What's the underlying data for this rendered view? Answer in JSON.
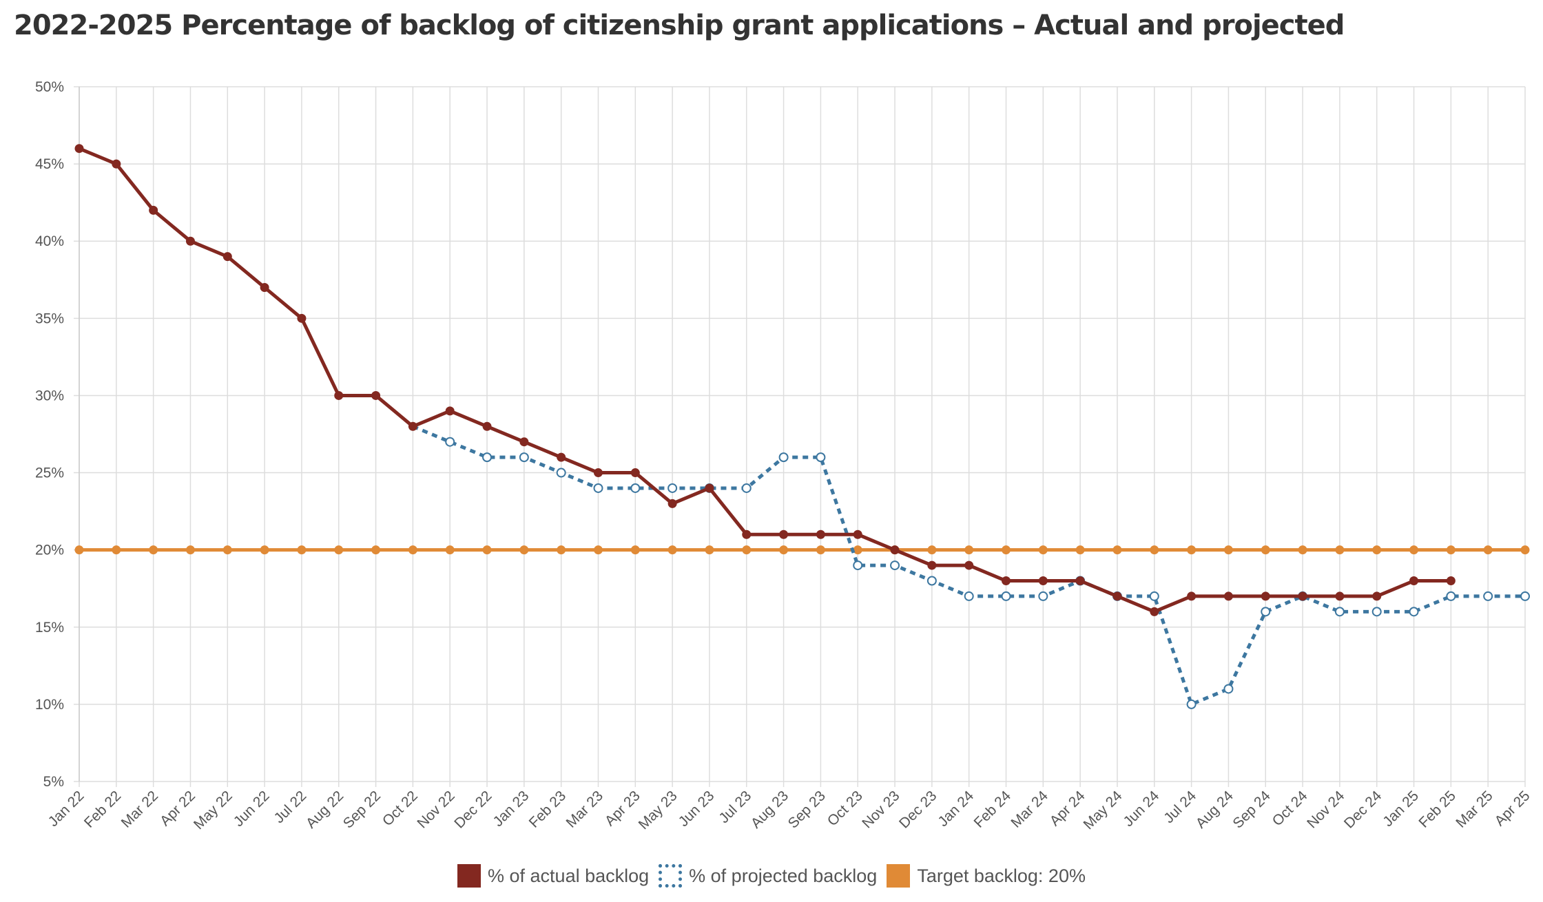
{
  "chart_data": {
    "type": "line",
    "title": "2022-2025 Percentage of backlog of citizenship grant applications – Actual and projected",
    "categories": [
      "Jan 22",
      "Feb 22",
      "Mar 22",
      "Apr 22",
      "May 22",
      "Jun 22",
      "Jul 22",
      "Aug 22",
      "Sep 22",
      "Oct 22",
      "Nov 22",
      "Dec 22",
      "Jan 23",
      "Feb 23",
      "Mar 23",
      "Apr 23",
      "May 23",
      "Jun 23",
      "Jul 23",
      "Aug 23",
      "Sep 23",
      "Oct 23",
      "Nov 23",
      "Dec 23",
      "Jan 24",
      "Feb 24",
      "Mar 24",
      "Apr 24",
      "May 24",
      "Jun 24",
      "Jul 24",
      "Aug 24",
      "Sep 24",
      "Oct 24",
      "Nov 24",
      "Dec 24",
      "Jan 25",
      "Feb 25",
      "Mar 25",
      "Apr 25"
    ],
    "y_ticks": [
      "5%",
      "10%",
      "15%",
      "20%",
      "25%",
      "30%",
      "35%",
      "40%",
      "45%",
      "50%"
    ],
    "ylim": [
      5,
      50
    ],
    "grid": true,
    "legend_position": "bottom",
    "series": [
      {
        "name": "% of actual backlog",
        "color": "#832820",
        "style": "solid",
        "values": [
          46,
          45,
          42,
          40,
          39,
          37,
          35,
          30,
          30,
          28,
          29,
          28,
          27,
          26,
          25,
          25,
          23,
          24,
          21,
          21,
          21,
          21,
          20,
          19,
          19,
          18,
          18,
          18,
          17,
          16,
          17,
          17,
          17,
          17,
          17,
          17,
          18,
          18,
          null,
          null
        ]
      },
      {
        "name": "% of projected backlog",
        "color": "#3d77a0",
        "style": "dotted",
        "values": [
          null,
          null,
          null,
          null,
          null,
          null,
          null,
          null,
          null,
          28,
          27,
          26,
          26,
          25,
          24,
          24,
          24,
          24,
          24,
          26,
          26,
          19,
          19,
          18,
          17,
          17,
          17,
          18,
          17,
          17,
          10,
          11,
          16,
          17,
          16,
          16,
          16,
          17,
          17,
          17
        ]
      },
      {
        "name": "Target backlog: 20%",
        "color": "#e08a36",
        "style": "solid",
        "values": [
          20,
          20,
          20,
          20,
          20,
          20,
          20,
          20,
          20,
          20,
          20,
          20,
          20,
          20,
          20,
          20,
          20,
          20,
          20,
          20,
          20,
          20,
          20,
          20,
          20,
          20,
          20,
          20,
          20,
          20,
          20,
          20,
          20,
          20,
          20,
          20,
          20,
          20,
          20,
          20
        ]
      }
    ]
  }
}
